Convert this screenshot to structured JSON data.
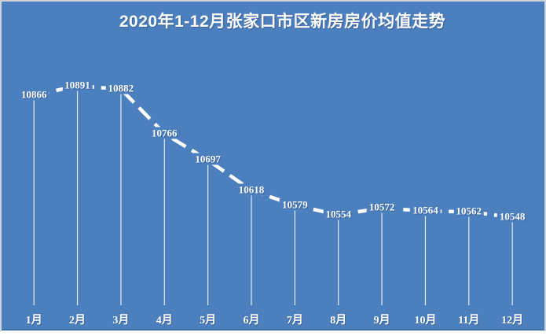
{
  "chart_data": {
    "type": "line",
    "title": "2020年1-12月张家口市区新房房价均值走势",
    "categories": [
      "1月",
      "2月",
      "3月",
      "4月",
      "5月",
      "6月",
      "7月",
      "8月",
      "9月",
      "10月",
      "11月",
      "12月"
    ],
    "values": [
      10866,
      10891,
      10882,
      10766,
      10697,
      10618,
      10579,
      10554,
      10572,
      10564,
      10562,
      10548
    ],
    "xlabel": "",
    "ylabel": "",
    "ylim": [
      10318,
      10950
    ],
    "legend": "none",
    "gridlines": false,
    "drop_lines": true,
    "line_style": "dashed",
    "data_labels": "shown-at-points",
    "colors": {
      "background": "#4C7FBE",
      "line": "#FFFFFF",
      "drop_line": "rgba(255,255,255,0.85)",
      "text": "#FFFFFF",
      "frame_edge": "#CDD2D9",
      "bottom_shadow": "#3E6EA8",
      "frame_bottom": "#FFFFFF"
    }
  }
}
